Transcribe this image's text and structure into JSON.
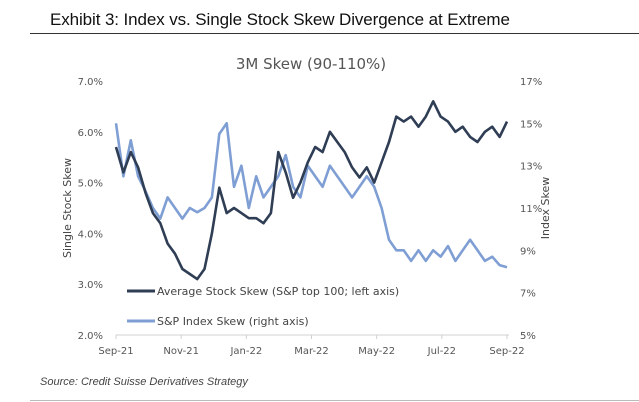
{
  "exhibit_title": "Exhibit 3: Index vs. Single Stock Skew Divergence at Extreme",
  "source": "Source: Credit Suisse Derivatives Strategy",
  "colors": {
    "stock_series": "#2f3e55",
    "index_series": "#7f9fd4",
    "axis": "#d0d0d0",
    "text": "#555555"
  },
  "chart_data": {
    "type": "line",
    "title": "3M Skew (90-110%)",
    "xlabel": "",
    "ylabel": "Single Stock Skew",
    "y2label": "Index Skew",
    "x_tick_labels": [
      "Sep-21",
      "Nov-21",
      "Jan-22",
      "Mar-22",
      "May-22",
      "Jul-22",
      "Sep-22"
    ],
    "y_tick_labels": [
      "7.0%",
      "6.0%",
      "5.0%",
      "4.0%",
      "3.0%",
      "2.0%"
    ],
    "y2_tick_labels": [
      "17%",
      "15%",
      "13%",
      "11%",
      "9%",
      "7%",
      "5%"
    ],
    "ylim": [
      2.0,
      7.0
    ],
    "y2lim": [
      5,
      17
    ],
    "grid": false,
    "legend_position": "bottom-left inside",
    "x_range": [
      "Sep-21",
      "Sep-22"
    ],
    "series": [
      {
        "name": "Average Stock Skew (S&P top 100; left axis)",
        "axis": "left",
        "unit": "%",
        "values": [
          5.7,
          5.2,
          5.6,
          5.3,
          4.8,
          4.4,
          4.2,
          3.8,
          3.6,
          3.3,
          3.2,
          3.1,
          3.3,
          4.0,
          4.9,
          4.4,
          4.5,
          4.4,
          4.3,
          4.3,
          4.2,
          4.4,
          5.6,
          5.2,
          4.7,
          5.0,
          5.4,
          5.7,
          5.6,
          6.0,
          5.8,
          5.6,
          5.3,
          5.1,
          5.3,
          5.0,
          5.4,
          5.8,
          6.3,
          6.2,
          6.3,
          6.1,
          6.3,
          6.6,
          6.3,
          6.2,
          6.0,
          6.1,
          5.9,
          5.8,
          6.0,
          6.1,
          5.9,
          6.2
        ]
      },
      {
        "name": "S&P Index Skew (right axis)",
        "axis": "right",
        "unit": "%",
        "values": [
          15.0,
          12.5,
          14.2,
          12.5,
          11.8,
          11.0,
          10.5,
          11.5,
          11.0,
          10.5,
          11.0,
          10.8,
          11.0,
          11.5,
          14.5,
          15.0,
          12.0,
          13.0,
          11.0,
          12.5,
          11.5,
          12.0,
          12.5,
          13.5,
          12.0,
          11.5,
          13.0,
          12.5,
          12.0,
          13.0,
          12.5,
          12.0,
          11.5,
          12.0,
          12.5,
          12.0,
          11.0,
          9.5,
          9.0,
          9.0,
          8.5,
          9.0,
          8.5,
          9.0,
          8.7,
          9.2,
          8.5,
          9.0,
          9.5,
          9.0,
          8.5,
          8.7,
          8.3,
          8.2
        ]
      }
    ]
  }
}
